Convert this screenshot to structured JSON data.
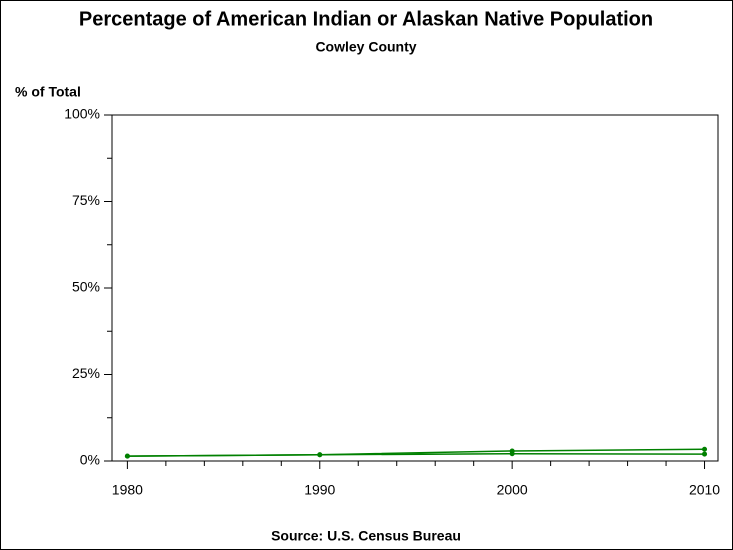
{
  "chart_data": {
    "type": "line",
    "title": "Percentage of American Indian or Alaskan Native Population",
    "subtitle": "Cowley County",
    "y_label": "% of Total",
    "source": "Source: U.S. Census Bureau",
    "x": [
      1980,
      1990,
      2000,
      2010
    ],
    "series": [
      {
        "color": "#008000",
        "values": [
          1.4,
          1.8,
          2.9,
          3.4
        ]
      },
      {
        "color": "#008000",
        "values": [
          1.4,
          1.8,
          2.1,
          2.0
        ]
      }
    ],
    "xlim": [
      1979.2,
      2010.7
    ],
    "xticks": [
      1980,
      1990,
      2000,
      2010
    ],
    "xminor_ticks": [
      1982,
      1984,
      1986,
      1988,
      1992,
      1994,
      1996,
      1998,
      2002,
      2004,
      2006,
      2008
    ],
    "ylim": [
      0,
      100
    ],
    "yticks": [
      {
        "value": 0,
        "label": "0%"
      },
      {
        "value": 25,
        "label": "25%"
      },
      {
        "value": 50,
        "label": "50%"
      },
      {
        "value": 75,
        "label": "75%"
      },
      {
        "value": 100,
        "label": "100%"
      }
    ],
    "yminor_ticks": [
      12.5,
      37.5,
      62.5,
      87.5
    ]
  }
}
